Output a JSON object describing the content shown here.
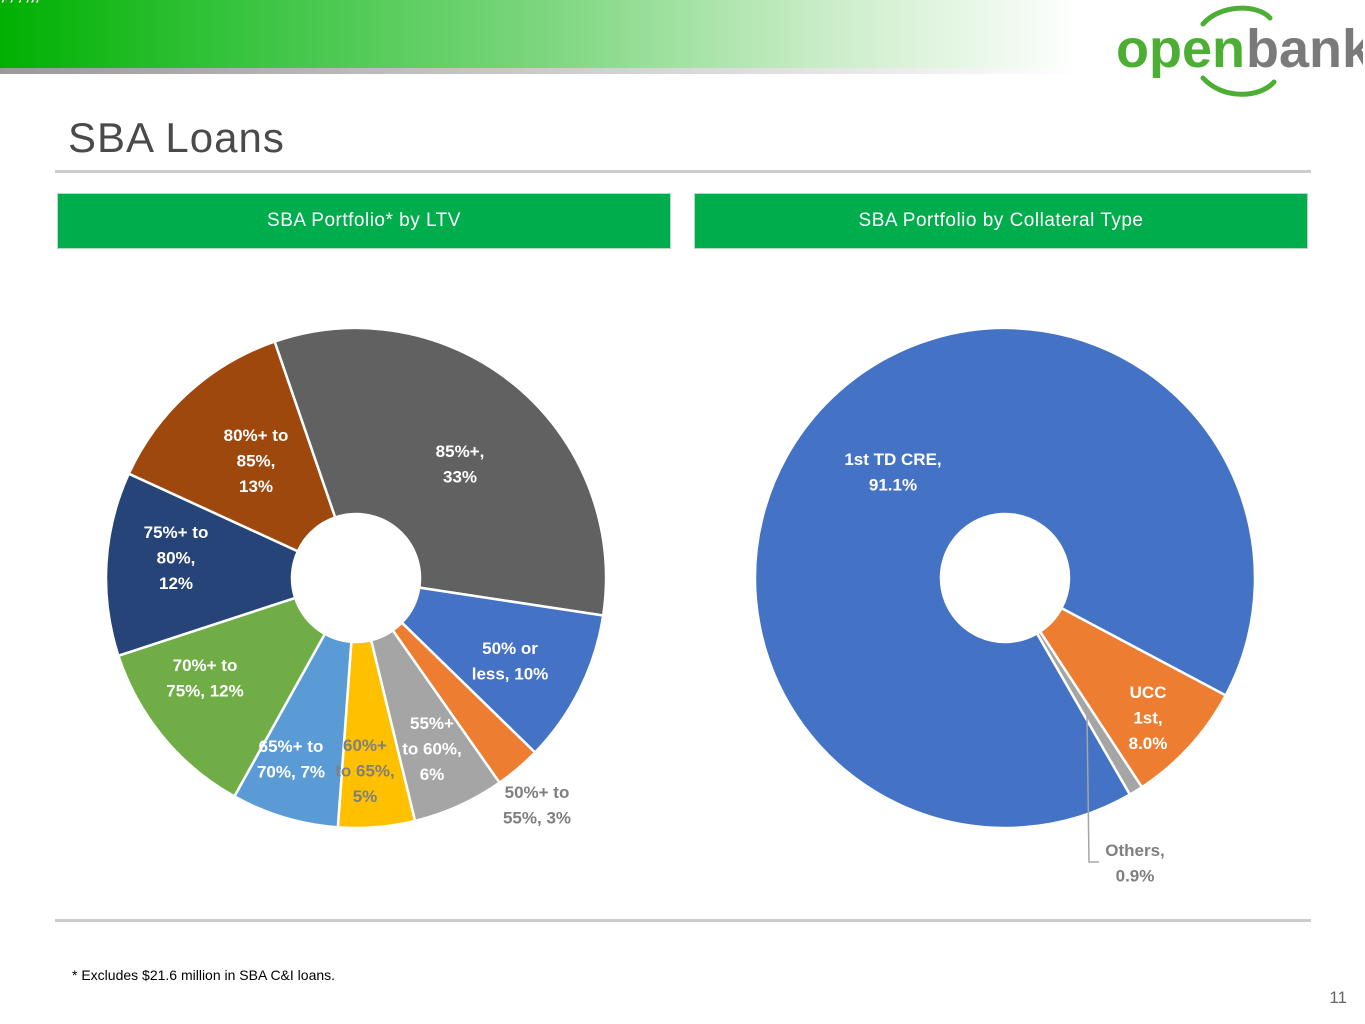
{
  "brand": {
    "logo_open": "open",
    "logo_bank": "bank"
  },
  "title": "SBA Loans",
  "panels": [
    {
      "header": "SBA Portfolio* by LTV"
    },
    {
      "header": "SBA Portfolio by Collateral Type"
    }
  ],
  "chart_data": [
    {
      "type": "pie",
      "title": "SBA Portfolio* by LTV",
      "donut": true,
      "slices": [
        {
          "label": "85%+, 33%",
          "category": "85%+",
          "value": 33,
          "color": "#616161",
          "label_color": "#ffffff"
        },
        {
          "label": "50% or less, 10%",
          "category": "50% or less",
          "value": 10,
          "color": "#4472c4",
          "label_color": "#ffffff"
        },
        {
          "label": "50%+ to 55%, 3%",
          "category": "50%+ to 55%",
          "value": 3,
          "color": "#ed7d31",
          "label_color": "#7f7f7f"
        },
        {
          "label": "55%+ to 60%, 6%",
          "category": "55%+ to 60%",
          "value": 6,
          "color": "#a5a5a5",
          "label_color": "#ffffff"
        },
        {
          "label": "60%+ to 65%, 5%",
          "category": "60%+ to 65%",
          "value": 5,
          "color": "#ffc000",
          "label_color": "#7f7f7f"
        },
        {
          "label": "65%+ to 70%, 7%",
          "category": "65%+ to 70%",
          "value": 7,
          "color": "#5b9bd5",
          "label_color": "#ffffff"
        },
        {
          "label": "70%+ to 75%, 12%",
          "category": "70%+ to 75%",
          "value": 12,
          "color": "#70ad47",
          "label_color": "#ffffff"
        },
        {
          "label": "75%+ to 80%, 12%",
          "category": "75%+ to 80%",
          "value": 12,
          "color": "#264478",
          "label_color": "#ffffff"
        },
        {
          "label": "80%+ to 85%, 13%",
          "category": "80%+ to 85%",
          "value": 13,
          "color": "#9e480e",
          "label_color": "#ffffff"
        }
      ]
    },
    {
      "type": "pie",
      "title": "SBA Portfolio by Collateral Type",
      "donut": true,
      "slices": [
        {
          "label": "UCC 1st, 8.0%",
          "category": "UCC 1st",
          "value": 8.0,
          "color": "#ed7d31",
          "label_color": "#ffffff"
        },
        {
          "label": "Others, 0.9%",
          "category": "Others",
          "value": 0.9,
          "color": "#a5a5a5",
          "label_color": "#7f7f7f"
        },
        {
          "label": "1st TD CRE, 91.1%",
          "category": "1st TD CRE",
          "value": 91.1,
          "color": "#4472c4",
          "label_color": "#ffffff"
        }
      ]
    }
  ],
  "footnote": "* Excludes $21.6 million in SBA C&I loans.",
  "page_number": "11"
}
